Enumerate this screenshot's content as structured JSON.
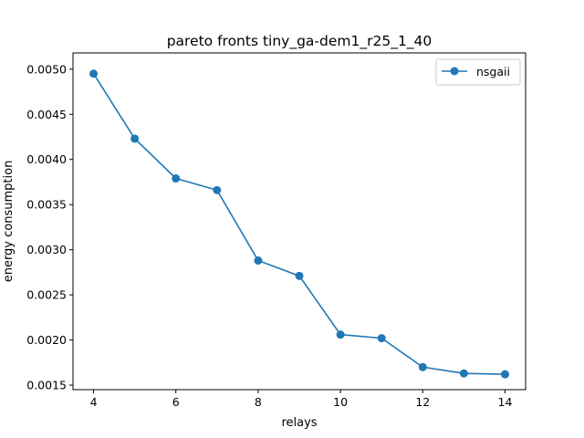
{
  "chart_data": {
    "type": "line",
    "title": "pareto fronts tiny_ga-dem1_r25_1_40",
    "xlabel": "relays",
    "ylabel": "energy consumption",
    "xlim": [
      3.5,
      14.5
    ],
    "ylim": [
      0.00145,
      0.00518
    ],
    "xticks": [
      4,
      6,
      8,
      10,
      12,
      14
    ],
    "xtick_labels": [
      "4",
      "6",
      "8",
      "10",
      "12",
      "14"
    ],
    "yticks": [
      0.0015,
      0.002,
      0.0025,
      0.003,
      0.0035,
      0.004,
      0.0045,
      0.005
    ],
    "ytick_labels": [
      "0.0015",
      "0.0020",
      "0.0025",
      "0.0030",
      "0.0035",
      "0.0040",
      "0.0045",
      "0.0050"
    ],
    "grid": false,
    "legend_position": "top-right",
    "series": [
      {
        "name": "nsgaii",
        "color": "#1f77b4",
        "marker": "circle",
        "x": [
          4,
          5,
          6,
          7,
          8,
          9,
          10,
          11,
          12,
          13,
          14
        ],
        "y": [
          0.00495,
          0.00423,
          0.00379,
          0.00366,
          0.00288,
          0.00271,
          0.00206,
          0.00202,
          0.0017,
          0.00163,
          0.00162
        ]
      }
    ]
  }
}
